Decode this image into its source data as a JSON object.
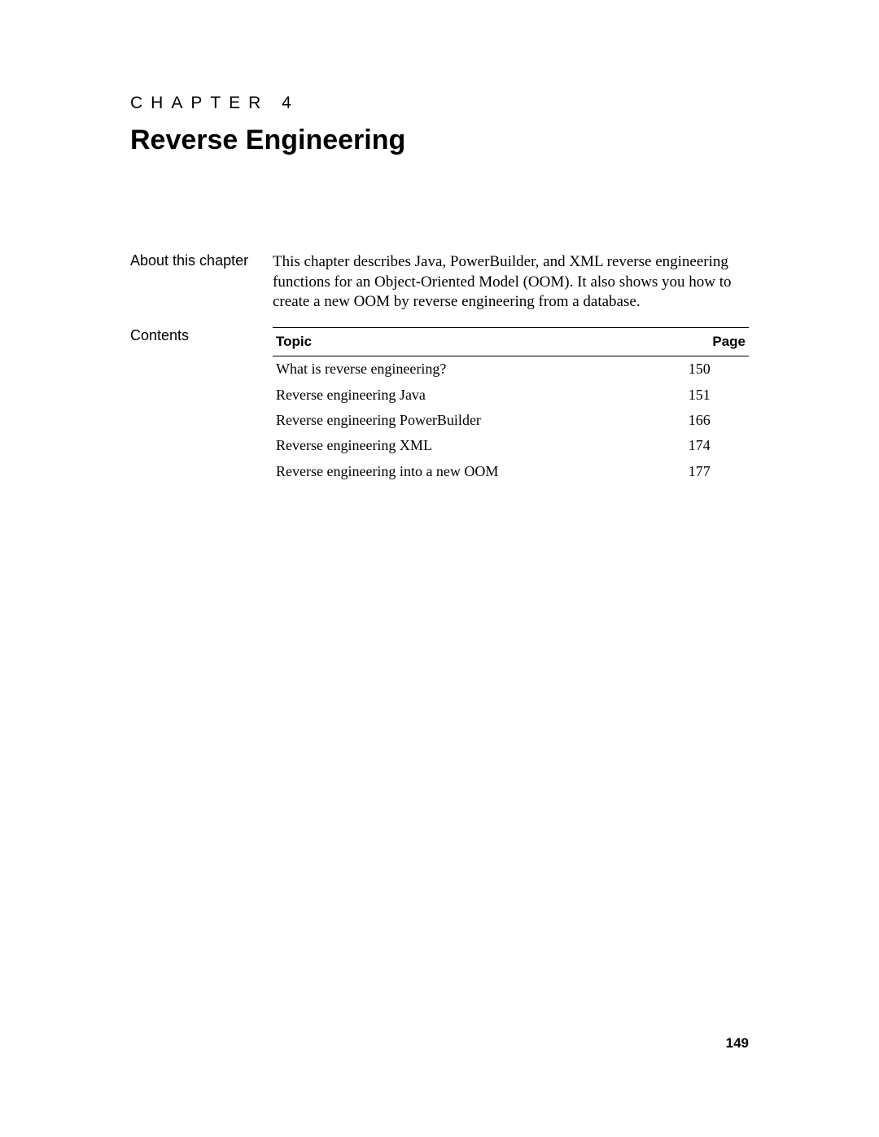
{
  "chapter": {
    "label": "CHAPTER 4",
    "title": "Reverse Engineering"
  },
  "about": {
    "label": "About this chapter",
    "text": "This chapter describes Java, PowerBuilder, and XML reverse engineering functions for an Object-Oriented Model (OOM). It also shows you how to create a new OOM by reverse engineering from a database."
  },
  "contents": {
    "label": "Contents",
    "headers": {
      "topic": "Topic",
      "page": "Page"
    },
    "rows": [
      {
        "topic": "What is reverse engineering?",
        "page": "150"
      },
      {
        "topic": "Reverse engineering Java",
        "page": "151"
      },
      {
        "topic": "Reverse engineering PowerBuilder",
        "page": "166"
      },
      {
        "topic": "Reverse engineering XML",
        "page": "174"
      },
      {
        "topic": "Reverse engineering into a new OOM",
        "page": "177"
      }
    ]
  },
  "page_number": "149"
}
